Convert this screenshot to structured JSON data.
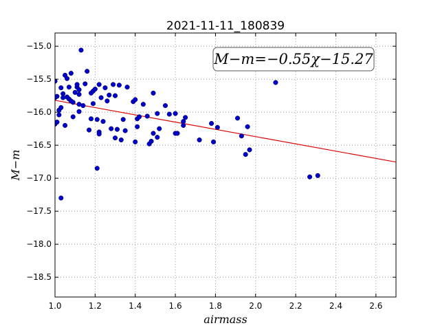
{
  "chart_data": {
    "type": "scatter",
    "title": "2021-11-11_180839",
    "xlabel": "airmass",
    "ylabel": "M−m",
    "xlim": [
      1.0,
      2.7
    ],
    "ylim": [
      -18.8,
      -14.8
    ],
    "xticks": [
      1.0,
      1.2,
      1.4,
      1.6,
      1.8,
      2.0,
      2.2,
      2.4,
      2.6
    ],
    "xtick_labels": [
      "1.0",
      "1.2",
      "1.4",
      "1.6",
      "1.8",
      "2.0",
      "2.2",
      "2.4",
      "2.6"
    ],
    "yticks": [
      -15.0,
      -15.5,
      -16.0,
      -16.5,
      -17.0,
      -17.5,
      -18.0,
      -18.5
    ],
    "ytick_labels": [
      "−15.0",
      "−15.5",
      "−16.0",
      "−16.5",
      "−17.0",
      "−17.5",
      "−18.0",
      "−18.5"
    ],
    "grid": true,
    "annotation": "M−m=−0.55χ−15.27",
    "point_color": "#0000cc",
    "fit_color": "#dd0000",
    "fit": {
      "slope": -0.55,
      "intercept": -15.27
    },
    "points": [
      [
        1.0,
        -15.53
      ],
      [
        1.0,
        -15.78
      ],
      [
        1.0,
        -16.18
      ],
      [
        1.01,
        -15.76
      ],
      [
        1.01,
        -16.15
      ],
      [
        1.02,
        -16.04
      ],
      [
        1.02,
        -15.97
      ],
      [
        1.03,
        -15.63
      ],
      [
        1.03,
        -15.93
      ],
      [
        1.03,
        -17.3
      ],
      [
        1.04,
        -15.78
      ],
      [
        1.04,
        -15.72
      ],
      [
        1.05,
        -15.44
      ],
      [
        1.05,
        -16.2
      ],
      [
        1.06,
        -15.49
      ],
      [
        1.06,
        -15.77
      ],
      [
        1.07,
        -15.8
      ],
      [
        1.07,
        -15.62
      ],
      [
        1.08,
        -15.41
      ],
      [
        1.08,
        -15.83
      ],
      [
        1.09,
        -15.85
      ],
      [
        1.09,
        -16.07
      ],
      [
        1.1,
        -15.7
      ],
      [
        1.11,
        -15.62
      ],
      [
        1.11,
        -15.58
      ],
      [
        1.12,
        -15.66
      ],
      [
        1.12,
        -15.73
      ],
      [
        1.12,
        -15.88
      ],
      [
        1.12,
        -15.99
      ],
      [
        1.13,
        -15.06
      ],
      [
        1.14,
        -15.9
      ],
      [
        1.15,
        -15.57
      ],
      [
        1.16,
        -15.38
      ],
      [
        1.17,
        -16.27
      ],
      [
        1.18,
        -15.71
      ],
      [
        1.18,
        -16.1
      ],
      [
        1.19,
        -15.87
      ],
      [
        1.19,
        -15.68
      ],
      [
        1.2,
        -15.65
      ],
      [
        1.21,
        -16.85
      ],
      [
        1.21,
        -16.11
      ],
      [
        1.22,
        -15.58
      ],
      [
        1.22,
        -16.3
      ],
      [
        1.22,
        -16.33
      ],
      [
        1.23,
        -15.78
      ],
      [
        1.24,
        -16.14
      ],
      [
        1.25,
        -15.63
      ],
      [
        1.26,
        -15.83
      ],
      [
        1.27,
        -15.74
      ],
      [
        1.28,
        -16.25
      ],
      [
        1.29,
        -15.58
      ],
      [
        1.3,
        -15.75
      ],
      [
        1.3,
        -16.39
      ],
      [
        1.31,
        -16.26
      ],
      [
        1.32,
        -15.59
      ],
      [
        1.33,
        -16.42
      ],
      [
        1.34,
        -16.11
      ],
      [
        1.35,
        -16.28
      ],
      [
        1.36,
        -15.62
      ],
      [
        1.39,
        -15.84
      ],
      [
        1.4,
        -15.81
      ],
      [
        1.4,
        -16.45
      ],
      [
        1.41,
        -16.1
      ],
      [
        1.41,
        -16.22
      ],
      [
        1.42,
        -16.07
      ],
      [
        1.44,
        -15.88
      ],
      [
        1.46,
        -16.06
      ],
      [
        1.47,
        -16.48
      ],
      [
        1.48,
        -16.44
      ],
      [
        1.49,
        -16.32
      ],
      [
        1.49,
        -15.71
      ],
      [
        1.51,
        -16.38
      ],
      [
        1.51,
        -16.02
      ],
      [
        1.52,
        -16.25
      ],
      [
        1.55,
        -15.9
      ],
      [
        1.57,
        -16.03
      ],
      [
        1.6,
        -16.32
      ],
      [
        1.6,
        -16.02
      ],
      [
        1.61,
        -16.32
      ],
      [
        1.64,
        -16.14
      ],
      [
        1.64,
        -16.2
      ],
      [
        1.65,
        -16.08
      ],
      [
        1.72,
        -16.42
      ],
      [
        1.78,
        -16.17
      ],
      [
        1.79,
        -16.45
      ],
      [
        1.81,
        -16.23
      ],
      [
        1.91,
        -16.09
      ],
      [
        1.93,
        -16.36
      ],
      [
        1.95,
        -16.64
      ],
      [
        1.96,
        -16.22
      ],
      [
        1.97,
        -16.57
      ],
      [
        2.1,
        -15.55
      ],
      [
        2.27,
        -16.98
      ],
      [
        2.31,
        -16.96
      ]
    ]
  }
}
